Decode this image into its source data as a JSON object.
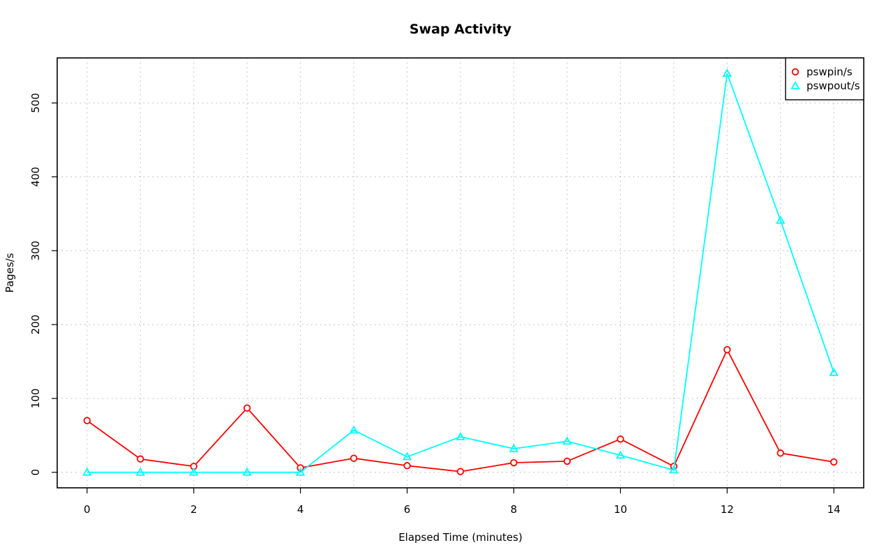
{
  "chart_data": {
    "type": "line",
    "title": "Swap Activity",
    "xlabel": "Elapsed Time (minutes)",
    "ylabel": "Pages/s",
    "x": [
      0,
      1,
      2,
      3,
      4,
      5,
      6,
      7,
      8,
      9,
      10,
      11,
      12,
      13,
      14
    ],
    "xlim": [
      -0.56,
      14.56
    ],
    "ylim": [
      -21,
      561
    ],
    "x_ticks": [
      0,
      2,
      4,
      6,
      8,
      10,
      12,
      14
    ],
    "y_ticks": [
      0,
      100,
      200,
      300,
      400,
      500
    ],
    "x_tick_labels": [
      "0",
      "2",
      "4",
      "6",
      "8",
      "10",
      "12",
      "14"
    ],
    "y_tick_labels": [
      "0",
      "100",
      "200",
      "300",
      "400",
      "500"
    ],
    "grid": true,
    "legend_position": "top-right",
    "series": [
      {
        "name": "pswpin/s",
        "color": "#ff0000",
        "marker": "circle",
        "values": [
          70,
          18,
          8,
          87,
          6,
          19,
          9,
          1,
          13,
          15,
          45,
          8,
          166,
          26,
          14
        ]
      },
      {
        "name": "pswpout/s",
        "color": "#00ffff",
        "marker": "triangle",
        "values": [
          0,
          0,
          0,
          0,
          0,
          57,
          21,
          48,
          32,
          42,
          23,
          3,
          540,
          341,
          135
        ]
      }
    ]
  }
}
